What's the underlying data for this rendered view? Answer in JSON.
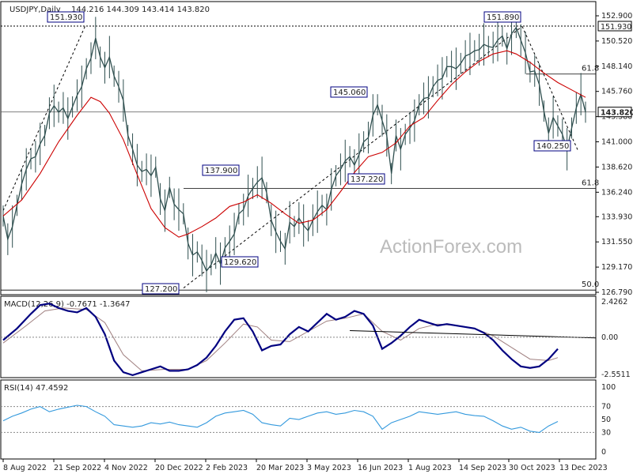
{
  "chart_data": {
    "type": "line",
    "header": {
      "symbol": "USDJPY,Daily",
      "ohlc": "144.216 144.309 143.414 143.820"
    },
    "watermark": "ActionForex.com",
    "price_axis_labels": [
      "152.900",
      "150.520",
      "148.140",
      "145.760",
      "143.380",
      "141.000",
      "138.620",
      "136.240",
      "133.930",
      "131.550",
      "129.170",
      "126.790"
    ],
    "price_axis_values": [
      152.9,
      150.52,
      148.14,
      145.76,
      143.38,
      141.0,
      138.62,
      136.24,
      133.93,
      131.55,
      129.17,
      126.79
    ],
    "x_labels": [
      "8 Aug 2022",
      "21 Sep 2022",
      "4 Nov 2022",
      "20 Dec 2022",
      "2 Feb 2023",
      "20 Mar 2023",
      "3 May 2023",
      "16 Jun 2023",
      "1 Aug 2023",
      "14 Sep 2023",
      "30 Oct 2023",
      "13 Dec 2023"
    ],
    "last_price_label": "143.820",
    "top_line_label": "151.930",
    "fib_labels": [
      "61.8",
      "61.8",
      "50.0"
    ],
    "fib_levels": [
      147.4,
      136.6,
      127.0
    ],
    "annotations": [
      {
        "text": "151.930",
        "value": 151.93
      },
      {
        "text": "151.890",
        "value": 151.89
      },
      {
        "text": "145.060",
        "value": 145.06
      },
      {
        "text": "137.900",
        "value": 137.9
      },
      {
        "text": "137.220",
        "value": 137.22
      },
      {
        "text": "140.250",
        "value": 140.25
      },
      {
        "text": "129.620",
        "value": 129.62
      },
      {
        "text": "127.200",
        "value": 127.2
      }
    ],
    "price_series_points": [
      [
        0,
        134.0
      ],
      [
        2,
        131.8
      ],
      [
        4,
        133.0
      ],
      [
        6,
        135.0
      ],
      [
        8,
        137.0
      ],
      [
        10,
        138.4
      ],
      [
        12,
        139.4
      ],
      [
        14,
        139.6
      ],
      [
        16,
        140.8
      ],
      [
        18,
        141.6
      ],
      [
        20,
        143.7
      ],
      [
        22,
        144.4
      ],
      [
        24,
        143.8
      ],
      [
        26,
        144.2
      ],
      [
        28,
        143.2
      ],
      [
        30,
        144.3
      ],
      [
        32,
        145.4
      ],
      [
        34,
        146.2
      ],
      [
        36,
        147.9
      ],
      [
        38,
        148.9
      ],
      [
        40,
        150.8
      ],
      [
        42,
        149.0
      ],
      [
        44,
        148.0
      ],
      [
        46,
        149.0
      ],
      [
        48,
        147.2
      ],
      [
        50,
        146.2
      ],
      [
        52,
        144.9
      ],
      [
        54,
        141.6
      ],
      [
        56,
        140.3
      ],
      [
        58,
        138.8
      ],
      [
        60,
        138.2
      ],
      [
        62,
        138.4
      ],
      [
        64,
        137.8
      ],
      [
        66,
        138.6
      ],
      [
        68,
        135.6
      ],
      [
        70,
        134.5
      ],
      [
        72,
        136.7
      ],
      [
        74,
        135.1
      ],
      [
        76,
        134.6
      ],
      [
        78,
        134.2
      ],
      [
        80,
        131.4
      ],
      [
        82,
        130.3
      ],
      [
        84,
        130.6
      ],
      [
        86,
        129.8
      ],
      [
        88,
        128.8
      ],
      [
        90,
        129.4
      ],
      [
        92,
        130.5
      ],
      [
        94,
        129.5
      ],
      [
        96,
        131.0
      ],
      [
        98,
        131.6
      ],
      [
        100,
        132.3
      ],
      [
        102,
        134.2
      ],
      [
        104,
        134.6
      ],
      [
        106,
        135.9
      ],
      [
        108,
        136.6
      ],
      [
        110,
        137.2
      ],
      [
        112,
        137.6
      ],
      [
        114,
        136.2
      ],
      [
        116,
        133.6
      ],
      [
        118,
        132.5
      ],
      [
        120,
        131.6
      ],
      [
        122,
        130.9
      ],
      [
        124,
        133.4
      ],
      [
        126,
        133.0
      ],
      [
        128,
        133.8
      ],
      [
        130,
        133.1
      ],
      [
        132,
        132.6
      ],
      [
        134,
        133.6
      ],
      [
        136,
        134.4
      ],
      [
        138,
        135.0
      ],
      [
        140,
        134.6
      ],
      [
        142,
        136.5
      ],
      [
        144,
        137.8
      ],
      [
        146,
        138.4
      ],
      [
        148,
        139.2
      ],
      [
        150,
        139.6
      ],
      [
        152,
        138.8
      ],
      [
        154,
        139.8
      ],
      [
        156,
        141.0
      ],
      [
        158,
        141.4
      ],
      [
        160,
        143.5
      ],
      [
        162,
        144.5
      ],
      [
        164,
        143.0
      ],
      [
        166,
        141.6
      ],
      [
        168,
        138.0
      ],
      [
        170,
        141.6
      ],
      [
        172,
        140.3
      ],
      [
        174,
        141.7
      ],
      [
        176,
        142.3
      ],
      [
        178,
        143.0
      ],
      [
        180,
        144.5
      ],
      [
        182,
        145.1
      ],
      [
        184,
        145.2
      ],
      [
        186,
        146.2
      ],
      [
        188,
        146.8
      ],
      [
        190,
        147.0
      ],
      [
        192,
        148.1
      ],
      [
        194,
        148.1
      ],
      [
        196,
        147.9
      ],
      [
        198,
        148.4
      ],
      [
        200,
        149.1
      ],
      [
        202,
        149.3
      ],
      [
        204,
        149.6
      ],
      [
        206,
        149.7
      ],
      [
        208,
        150.2
      ],
      [
        210,
        150.0
      ],
      [
        212,
        149.9
      ],
      [
        214,
        150.6
      ],
      [
        216,
        151.0
      ],
      [
        218,
        149.8
      ],
      [
        220,
        151.2
      ],
      [
        222,
        151.8
      ],
      [
        224,
        150.6
      ],
      [
        226,
        149.4
      ],
      [
        228,
        147.6
      ],
      [
        230,
        147.7
      ],
      [
        232,
        146.4
      ],
      [
        234,
        143.9
      ],
      [
        236,
        141.8
      ],
      [
        238,
        143.3
      ],
      [
        240,
        142.5
      ],
      [
        242,
        141.7
      ],
      [
        244,
        140.3
      ],
      [
        246,
        142.3
      ],
      [
        248,
        144.2
      ],
      [
        250,
        145.5
      ],
      [
        252,
        143.8
      ]
    ],
    "ma_series_points": [
      [
        0,
        134.0
      ],
      [
        8,
        135.5
      ],
      [
        16,
        138.0
      ],
      [
        24,
        141.0
      ],
      [
        32,
        143.5
      ],
      [
        38,
        145.2
      ],
      [
        42,
        144.8
      ],
      [
        46,
        143.7
      ],
      [
        52,
        141.2
      ],
      [
        58,
        137.9
      ],
      [
        64,
        134.7
      ],
      [
        70,
        132.9
      ],
      [
        76,
        132.0
      ],
      [
        80,
        132.3
      ],
      [
        86,
        133.0
      ],
      [
        92,
        133.8
      ],
      [
        98,
        134.9
      ],
      [
        104,
        135.3
      ],
      [
        110,
        136.0
      ],
      [
        116,
        135.2
      ],
      [
        122,
        134.2
      ],
      [
        128,
        133.3
      ],
      [
        134,
        133.6
      ],
      [
        140,
        134.6
      ],
      [
        146,
        136.3
      ],
      [
        152,
        138.1
      ],
      [
        158,
        139.6
      ],
      [
        164,
        140.0
      ],
      [
        170,
        140.9
      ],
      [
        176,
        142.5
      ],
      [
        182,
        143.3
      ],
      [
        188,
        144.9
      ],
      [
        194,
        146.4
      ],
      [
        200,
        147.6
      ],
      [
        206,
        148.6
      ],
      [
        212,
        149.3
      ],
      [
        218,
        149.6
      ],
      [
        222,
        149.3
      ],
      [
        228,
        148.5
      ],
      [
        234,
        147.5
      ],
      [
        240,
        146.6
      ],
      [
        246,
        145.9
      ],
      [
        252,
        145.2
      ]
    ],
    "macd": {
      "label": "MACD(12,26,9) -0.7671 -1.3647",
      "axis_labels": [
        "2.4262",
        "0.00",
        "-2.5511"
      ],
      "axis_values": [
        2.4262,
        0.0,
        -2.5511
      ],
      "macd_points": [
        [
          0,
          -0.2
        ],
        [
          6,
          0.6
        ],
        [
          12,
          1.6
        ],
        [
          16,
          2.2
        ],
        [
          20,
          2.3
        ],
        [
          24,
          2.0
        ],
        [
          28,
          1.8
        ],
        [
          32,
          1.7
        ],
        [
          36,
          2.0
        ],
        [
          40,
          1.4
        ],
        [
          44,
          0.2
        ],
        [
          48,
          -1.6
        ],
        [
          52,
          -2.4
        ],
        [
          56,
          -2.6
        ],
        [
          60,
          -2.4
        ],
        [
          64,
          -2.2
        ],
        [
          68,
          -2.0
        ],
        [
          72,
          -2.3
        ],
        [
          76,
          -2.3
        ],
        [
          80,
          -2.2
        ],
        [
          84,
          -1.9
        ],
        [
          88,
          -1.4
        ],
        [
          92,
          -0.6
        ],
        [
          96,
          0.4
        ],
        [
          100,
          1.2
        ],
        [
          104,
          1.3
        ],
        [
          108,
          0.4
        ],
        [
          112,
          -0.9
        ],
        [
          116,
          -0.6
        ],
        [
          120,
          -0.5
        ],
        [
          124,
          0.2
        ],
        [
          128,
          0.7
        ],
        [
          132,
          0.4
        ],
        [
          136,
          1.0
        ],
        [
          140,
          1.6
        ],
        [
          144,
          1.2
        ],
        [
          148,
          1.4
        ],
        [
          152,
          1.8
        ],
        [
          156,
          1.6
        ],
        [
          160,
          0.8
        ],
        [
          164,
          -0.8
        ],
        [
          168,
          -0.4
        ],
        [
          172,
          0.1
        ],
        [
          176,
          0.7
        ],
        [
          180,
          1.2
        ],
        [
          184,
          1.0
        ],
        [
          188,
          0.8
        ],
        [
          192,
          0.9
        ],
        [
          196,
          0.8
        ],
        [
          200,
          0.7
        ],
        [
          204,
          0.6
        ],
        [
          208,
          0.3
        ],
        [
          212,
          -0.2
        ],
        [
          216,
          -0.9
        ],
        [
          220,
          -1.5
        ],
        [
          224,
          -2.0
        ],
        [
          228,
          -2.1
        ],
        [
          232,
          -2.0
        ],
        [
          236,
          -1.5
        ],
        [
          240,
          -0.8
        ]
      ],
      "signal_points": [
        [
          0,
          -0.4
        ],
        [
          10,
          0.8
        ],
        [
          18,
          1.8
        ],
        [
          26,
          2.0
        ],
        [
          36,
          1.9
        ],
        [
          44,
          1.0
        ],
        [
          52,
          -1.2
        ],
        [
          60,
          -2.3
        ],
        [
          70,
          -2.2
        ],
        [
          80,
          -2.2
        ],
        [
          88,
          -1.6
        ],
        [
          96,
          -0.4
        ],
        [
          104,
          0.9
        ],
        [
          110,
          0.7
        ],
        [
          116,
          -0.2
        ],
        [
          124,
          -0.3
        ],
        [
          132,
          0.4
        ],
        [
          140,
          1.1
        ],
        [
          148,
          1.3
        ],
        [
          156,
          1.6
        ],
        [
          164,
          0.4
        ],
        [
          172,
          -0.2
        ],
        [
          180,
          0.6
        ],
        [
          188,
          0.9
        ],
        [
          196,
          0.8
        ],
        [
          204,
          0.6
        ],
        [
          212,
          0.1
        ],
        [
          220,
          -0.7
        ],
        [
          228,
          -1.5
        ],
        [
          236,
          -1.6
        ],
        [
          240,
          -1.4
        ]
      ],
      "trendline": [
        [
          150,
          0.45
        ],
        [
          243,
          -0.05
        ]
      ]
    },
    "rsi": {
      "label": "RSI(14) 47.4592",
      "axis_labels": [
        "100",
        "70",
        "50",
        "30",
        "0"
      ],
      "axis_values": [
        100,
        70,
        50,
        30,
        0
      ],
      "points": [
        [
          0,
          48
        ],
        [
          4,
          55
        ],
        [
          8,
          60
        ],
        [
          12,
          66
        ],
        [
          16,
          70
        ],
        [
          20,
          62
        ],
        [
          24,
          66
        ],
        [
          28,
          69
        ],
        [
          32,
          72
        ],
        [
          36,
          70
        ],
        [
          40,
          62
        ],
        [
          44,
          55
        ],
        [
          48,
          42
        ],
        [
          52,
          40
        ],
        [
          56,
          38
        ],
        [
          60,
          40
        ],
        [
          64,
          45
        ],
        [
          68,
          43
        ],
        [
          72,
          46
        ],
        [
          76,
          42
        ],
        [
          80,
          40
        ],
        [
          84,
          38
        ],
        [
          88,
          45
        ],
        [
          92,
          55
        ],
        [
          96,
          60
        ],
        [
          100,
          62
        ],
        [
          104,
          64
        ],
        [
          108,
          58
        ],
        [
          112,
          45
        ],
        [
          116,
          42
        ],
        [
          120,
          40
        ],
        [
          124,
          52
        ],
        [
          128,
          50
        ],
        [
          132,
          55
        ],
        [
          136,
          60
        ],
        [
          140,
          62
        ],
        [
          144,
          58
        ],
        [
          148,
          60
        ],
        [
          152,
          64
        ],
        [
          156,
          62
        ],
        [
          160,
          55
        ],
        [
          164,
          35
        ],
        [
          168,
          45
        ],
        [
          172,
          50
        ],
        [
          176,
          55
        ],
        [
          180,
          62
        ],
        [
          184,
          60
        ],
        [
          188,
          58
        ],
        [
          192,
          60
        ],
        [
          196,
          62
        ],
        [
          200,
          58
        ],
        [
          204,
          56
        ],
        [
          208,
          55
        ],
        [
          212,
          48
        ],
        [
          216,
          40
        ],
        [
          220,
          35
        ],
        [
          224,
          38
        ],
        [
          228,
          32
        ],
        [
          232,
          30
        ],
        [
          236,
          40
        ],
        [
          240,
          47
        ]
      ]
    },
    "colors": {
      "price": "#2f4f4f",
      "ma": "#cc0000",
      "macd": "#000080",
      "signal": "#a08080",
      "rsi": "#3399dd",
      "label_border": "#000080"
    }
  }
}
